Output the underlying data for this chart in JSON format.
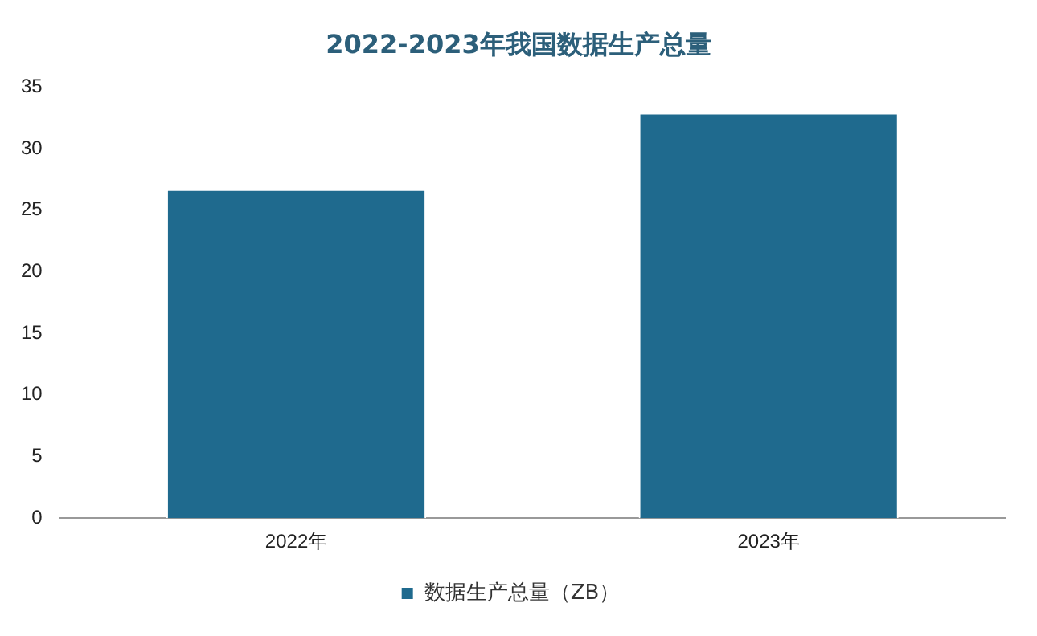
{
  "chart_data": {
    "type": "bar",
    "title": "2022-2023年我国数据生产总量",
    "categories": [
      "2022年",
      "2023年"
    ],
    "series": [
      {
        "name": "数据生产总量（ZB）",
        "color": "#1f6a8e",
        "values": [
          26.7,
          32.9
        ]
      }
    ],
    "ylim": [
      0,
      35
    ],
    "yticks": [
      0,
      5,
      10,
      15,
      20,
      25,
      30,
      35
    ],
    "grid": false,
    "legend": "bottom"
  }
}
